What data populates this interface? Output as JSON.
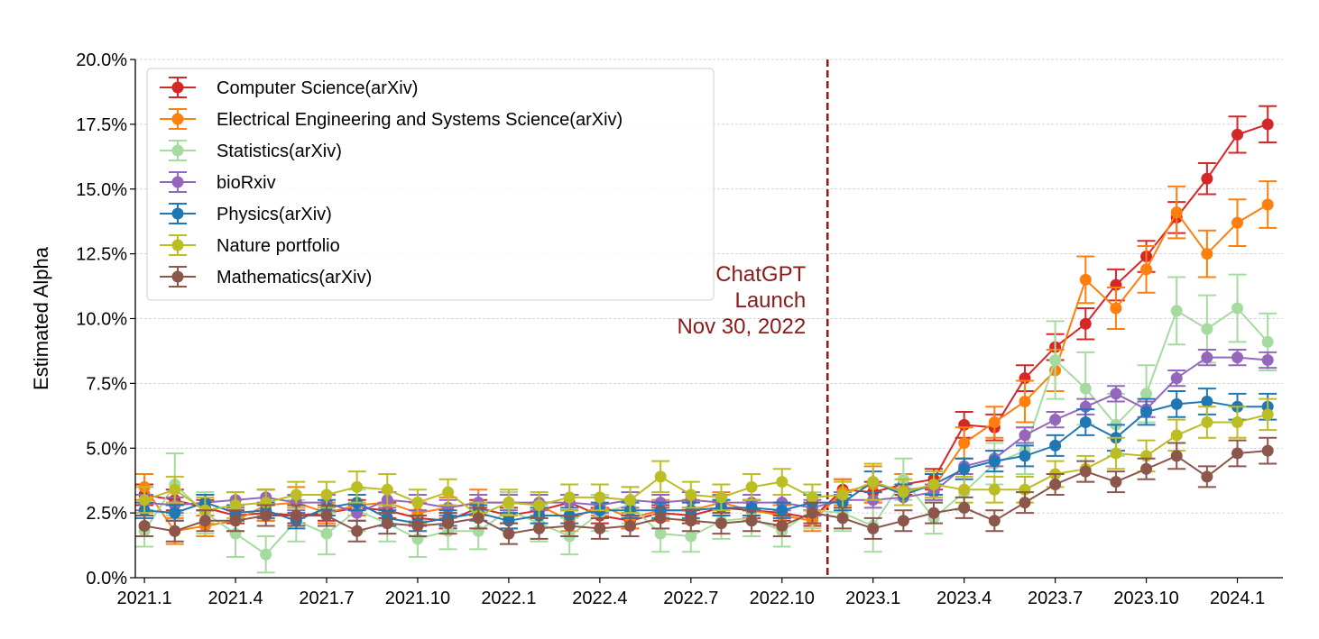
{
  "chart_data": {
    "type": "line",
    "title": "",
    "xlabel": "",
    "ylabel": "Estimated Alpha",
    "ylim": [
      0.0,
      20.0
    ],
    "y_unit": "%",
    "yticks": [
      "0.0%",
      "2.5%",
      "5.0%",
      "7.5%",
      "10.0%",
      "12.5%",
      "15.0%",
      "17.5%",
      "20.0%"
    ],
    "ytick_values": [
      0,
      2.5,
      5,
      7.5,
      10,
      12.5,
      15,
      17.5,
      20
    ],
    "xlim": [
      -0.3,
      37.5
    ],
    "xticks": [
      "2021.1",
      "2021.4",
      "2021.7",
      "2021.10",
      "2022.1",
      "2022.4",
      "2022.7",
      "2022.10",
      "2023.1",
      "2023.4",
      "2023.7",
      "2023.10",
      "2024.1"
    ],
    "xtick_positions": [
      0,
      3,
      6,
      9,
      12,
      15,
      18,
      21,
      24,
      27,
      30,
      33,
      36
    ],
    "grid": "horizontal",
    "legend_position": "upper-left",
    "annotation": {
      "x": 22.5,
      "lines": [
        "ChatGPT",
        "Launch",
        "Nov 30, 2022"
      ],
      "color": "#8b1a1a"
    },
    "series": [
      {
        "name": "Computer Science(arXiv)",
        "color": "#d62728",
        "x": [
          0,
          1,
          2,
          3,
          4,
          5,
          6,
          7,
          8,
          9,
          10,
          11,
          12,
          13,
          14,
          15,
          16,
          17,
          18,
          19,
          20,
          21,
          22,
          23,
          24,
          25,
          26,
          27,
          28,
          29,
          30,
          31,
          32,
          33,
          34,
          35,
          36,
          37
        ],
        "values": [
          3.2,
          3.0,
          2.7,
          2.4,
          2.5,
          2.4,
          2.5,
          2.7,
          2.6,
          2.3,
          2.2,
          2.7,
          2.4,
          2.6,
          2.9,
          2.4,
          2.2,
          2.5,
          2.4,
          2.7,
          2.6,
          2.5,
          2.3,
          3.4,
          3.3,
          3.6,
          3.8,
          5.9,
          5.8,
          7.7,
          8.9,
          9.8,
          11.3,
          12.4,
          13.9,
          15.4,
          17.1,
          17.5
        ],
        "errors": [
          0.4,
          0.4,
          0.3,
          0.3,
          0.3,
          0.3,
          0.3,
          0.3,
          0.3,
          0.3,
          0.3,
          0.3,
          0.3,
          0.3,
          0.3,
          0.3,
          0.3,
          0.3,
          0.3,
          0.3,
          0.3,
          0.3,
          0.3,
          0.4,
          0.4,
          0.4,
          0.4,
          0.5,
          0.5,
          0.5,
          0.5,
          0.6,
          0.6,
          0.6,
          0.6,
          0.6,
          0.7,
          0.7
        ]
      },
      {
        "name": "Electrical Engineering and Systems Science(arXiv)",
        "color": "#ff7f0e",
        "x": [
          0,
          1,
          2,
          3,
          4,
          5,
          6,
          7,
          8,
          9,
          10,
          11,
          12,
          13,
          14,
          15,
          16,
          17,
          18,
          19,
          20,
          21,
          22,
          23,
          24,
          25,
          26,
          27,
          28,
          29,
          30,
          31,
          32,
          33,
          34,
          35,
          36,
          37
        ],
        "values": [
          3.5,
          1.8,
          2.0,
          2.2,
          2.8,
          2.9,
          2.5,
          2.8,
          2.9,
          2.5,
          2.7,
          2.9,
          2.9,
          2.8,
          2.2,
          2.8,
          2.3,
          2.6,
          2.6,
          2.9,
          2.6,
          2.4,
          2.2,
          3.3,
          3.6,
          3.4,
          3.5,
          5.2,
          6.0,
          6.8,
          8.0,
          11.5,
          10.4,
          11.9,
          14.1,
          12.5,
          13.7,
          14.4
        ],
        "errors": [
          0.5,
          0.5,
          0.4,
          0.4,
          0.6,
          0.6,
          0.4,
          0.4,
          0.4,
          0.4,
          0.4,
          0.5,
          0.4,
          0.4,
          0.4,
          0.4,
          0.4,
          0.4,
          0.4,
          0.4,
          0.4,
          0.4,
          0.4,
          0.5,
          0.7,
          0.6,
          0.5,
          0.6,
          0.6,
          0.8,
          0.8,
          0.9,
          0.8,
          0.9,
          1.0,
          0.9,
          0.9,
          0.9
        ]
      },
      {
        "name": "Statistics(arXiv)",
        "color": "#a6dba0",
        "x": [
          0,
          1,
          2,
          3,
          4,
          5,
          6,
          7,
          8,
          9,
          10,
          11,
          12,
          13,
          14,
          15,
          16,
          17,
          18,
          19,
          20,
          21,
          22,
          23,
          24,
          25,
          26,
          27,
          28,
          29,
          30,
          31,
          32,
          33,
          34,
          35,
          36,
          37
        ],
        "values": [
          1.8,
          3.6,
          2.5,
          1.7,
          0.9,
          2.2,
          1.7,
          2.6,
          2.1,
          1.5,
          1.8,
          1.8,
          2.6,
          2.1,
          1.6,
          2.5,
          2.8,
          1.7,
          1.6,
          2.2,
          2.3,
          1.8,
          2.6,
          2.5,
          2.0,
          3.8,
          2.3,
          3.3,
          4.4,
          4.9,
          8.4,
          7.3,
          5.9,
          7.1,
          10.3,
          9.6,
          10.4,
          9.1
        ],
        "errors": [
          0.6,
          1.2,
          0.8,
          0.9,
          0.7,
          0.8,
          0.8,
          0.8,
          0.7,
          0.7,
          0.7,
          0.7,
          0.7,
          0.7,
          0.7,
          0.7,
          0.7,
          0.7,
          0.6,
          0.7,
          0.7,
          0.6,
          0.7,
          0.7,
          1.0,
          0.8,
          0.6,
          0.7,
          0.8,
          0.9,
          1.5,
          1.4,
          1.2,
          1.1,
          1.3,
          1.3,
          1.3,
          1.1
        ]
      },
      {
        "name": "bioRxiv",
        "color": "#9467bd",
        "x": [
          0,
          1,
          2,
          3,
          4,
          5,
          6,
          7,
          8,
          9,
          10,
          11,
          12,
          13,
          14,
          15,
          16,
          17,
          18,
          19,
          20,
          21,
          22,
          23,
          24,
          25,
          26,
          27,
          28,
          29,
          30,
          31,
          32,
          33,
          34,
          35,
          36,
          37
        ],
        "values": [
          2.9,
          2.8,
          2.9,
          3.0,
          3.1,
          2.9,
          2.9,
          2.5,
          3.0,
          2.9,
          2.7,
          2.9,
          2.9,
          2.9,
          2.9,
          2.8,
          3.0,
          2.9,
          3.0,
          2.9,
          2.9,
          2.9,
          2.7,
          3.0,
          3.0,
          3.1,
          3.3,
          4.3,
          4.6,
          5.5,
          6.1,
          6.6,
          7.1,
          6.5,
          7.7,
          8.5,
          8.5,
          8.4
        ],
        "errors": [
          0.3,
          0.3,
          0.3,
          0.3,
          0.3,
          0.3,
          0.3,
          0.3,
          0.3,
          0.3,
          0.3,
          0.3,
          0.3,
          0.3,
          0.3,
          0.3,
          0.3,
          0.3,
          0.3,
          0.3,
          0.3,
          0.3,
          0.3,
          0.3,
          0.3,
          0.3,
          0.3,
          0.3,
          0.3,
          0.3,
          0.3,
          0.3,
          0.3,
          0.3,
          0.3,
          0.3,
          0.3,
          0.3
        ]
      },
      {
        "name": "Physics(arXiv)",
        "color": "#1f77b4",
        "x": [
          0,
          1,
          2,
          3,
          4,
          5,
          6,
          7,
          8,
          9,
          10,
          11,
          12,
          13,
          14,
          15,
          16,
          17,
          18,
          19,
          20,
          21,
          22,
          23,
          24,
          25,
          26,
          27,
          28,
          29,
          30,
          31,
          32,
          33,
          34,
          35,
          36,
          37
        ],
        "values": [
          2.6,
          2.5,
          2.9,
          2.5,
          2.6,
          2.2,
          2.7,
          2.9,
          2.3,
          2.1,
          2.3,
          2.5,
          2.2,
          2.4,
          2.4,
          2.6,
          2.6,
          2.6,
          2.6,
          2.7,
          2.7,
          2.6,
          2.9,
          2.9,
          3.7,
          3.2,
          3.6,
          4.2,
          4.5,
          4.7,
          5.1,
          6.0,
          5.4,
          6.4,
          6.7,
          6.8,
          6.6,
          6.6
        ],
        "errors": [
          0.3,
          0.3,
          0.3,
          0.3,
          0.3,
          0.3,
          0.3,
          0.3,
          0.3,
          0.3,
          0.3,
          0.3,
          0.3,
          0.3,
          0.3,
          0.3,
          0.3,
          0.3,
          0.3,
          0.3,
          0.3,
          0.3,
          0.3,
          0.3,
          0.4,
          0.4,
          0.4,
          0.4,
          0.4,
          0.4,
          0.4,
          0.5,
          0.5,
          0.5,
          0.5,
          0.5,
          0.5,
          0.5
        ]
      },
      {
        "name": "Nature portfolio",
        "color": "#bcbd22",
        "x": [
          0,
          1,
          2,
          3,
          4,
          5,
          6,
          7,
          8,
          9,
          10,
          11,
          12,
          13,
          14,
          15,
          16,
          17,
          18,
          19,
          20,
          21,
          22,
          23,
          24,
          25,
          26,
          27,
          28,
          29,
          30,
          31,
          32,
          33,
          34,
          35,
          36,
          37
        ],
        "values": [
          3.0,
          3.4,
          2.6,
          2.8,
          2.9,
          3.2,
          3.2,
          3.5,
          3.4,
          2.9,
          3.3,
          2.4,
          2.9,
          2.8,
          3.1,
          3.1,
          3.0,
          3.9,
          3.2,
          3.1,
          3.5,
          3.7,
          3.1,
          3.2,
          3.7,
          3.3,
          3.6,
          3.4,
          3.4,
          3.4,
          4.0,
          4.2,
          4.8,
          4.7,
          5.5,
          6.0,
          6.0,
          6.3
        ],
        "errors": [
          0.5,
          0.5,
          0.5,
          0.5,
          0.5,
          0.5,
          0.5,
          0.6,
          0.6,
          0.5,
          0.5,
          0.5,
          0.5,
          0.5,
          0.5,
          0.5,
          0.5,
          0.6,
          0.5,
          0.5,
          0.5,
          0.5,
          0.5,
          0.5,
          0.7,
          0.5,
          0.5,
          0.5,
          0.5,
          0.5,
          0.5,
          0.5,
          0.6,
          0.6,
          0.6,
          0.6,
          0.6,
          0.6
        ]
      },
      {
        "name": "Mathematics(arXiv)",
        "color": "#8c564b",
        "x": [
          0,
          1,
          2,
          3,
          4,
          5,
          6,
          7,
          8,
          9,
          10,
          11,
          12,
          13,
          14,
          15,
          16,
          17,
          18,
          19,
          20,
          21,
          22,
          23,
          24,
          25,
          26,
          27,
          28,
          29,
          30,
          31,
          32,
          33,
          34,
          35,
          36,
          37
        ],
        "values": [
          2.0,
          1.8,
          2.2,
          2.2,
          2.4,
          2.4,
          2.4,
          1.8,
          2.1,
          2.0,
          2.1,
          2.3,
          1.7,
          1.9,
          2.0,
          1.9,
          2.0,
          2.3,
          2.2,
          2.1,
          2.2,
          2.0,
          2.5,
          2.3,
          1.9,
          2.2,
          2.5,
          2.7,
          2.2,
          2.9,
          3.6,
          4.1,
          3.7,
          4.2,
          4.7,
          3.9,
          4.8,
          4.9
        ],
        "errors": [
          0.4,
          0.4,
          0.4,
          0.4,
          0.4,
          0.4,
          0.4,
          0.4,
          0.4,
          0.4,
          0.4,
          0.4,
          0.4,
          0.4,
          0.4,
          0.4,
          0.4,
          0.4,
          0.4,
          0.4,
          0.4,
          0.4,
          0.4,
          0.4,
          0.4,
          0.4,
          0.4,
          0.4,
          0.4,
          0.4,
          0.4,
          0.4,
          0.4,
          0.4,
          0.5,
          0.4,
          0.5,
          0.5
        ]
      }
    ]
  }
}
